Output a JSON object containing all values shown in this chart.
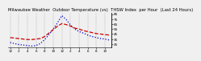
{
  "title": "Milwaukee Weather  Outdoor Temperature (vs)  THSW Index  per Hour  (Last 24 Hours)",
  "bg_color": "#f0f0f0",
  "plot_bg": "#f0f0f0",
  "grid_color": "#888888",
  "hours": [
    0,
    1,
    2,
    3,
    4,
    5,
    6,
    7,
    8,
    9,
    10,
    11,
    12,
    13,
    14,
    15,
    16,
    17,
    18,
    19,
    20,
    21,
    22,
    23
  ],
  "temp": [
    38,
    37,
    36,
    35,
    34,
    34,
    35,
    36,
    40,
    47,
    54,
    61,
    66,
    64,
    61,
    57,
    55,
    52,
    50,
    48,
    46,
    45,
    44,
    43
  ],
  "thsw": [
    28,
    26,
    24,
    23,
    22,
    21,
    22,
    26,
    34,
    44,
    55,
    68,
    82,
    74,
    63,
    55,
    50,
    47,
    43,
    40,
    38,
    36,
    35,
    33
  ],
  "temp_color": "#cc0000",
  "thsw_color": "#0000cc",
  "temp_lw": 0.9,
  "thsw_lw": 0.9,
  "ylim": [
    18,
    88
  ],
  "yticks": [
    85,
    75,
    65,
    55,
    45,
    35,
    25
  ],
  "title_fontsize": 3.8,
  "tick_fontsize": 3.0,
  "linewidth": 0.8,
  "xtick_step": 2
}
